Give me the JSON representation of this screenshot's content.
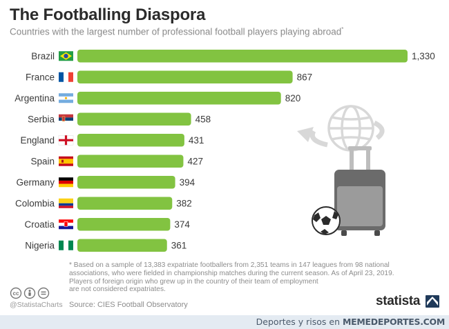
{
  "title": "The Footballing Diaspora",
  "subtitle": "Countries with the largest number of professional football players playing abroad",
  "subtitle_mark": "*",
  "chart_data": {
    "type": "bar",
    "orientation": "horizontal",
    "title": "The Footballing Diaspora",
    "categories": [
      "Brazil",
      "France",
      "Argentina",
      "Serbia",
      "England",
      "Spain",
      "Germany",
      "Colombia",
      "Croatia",
      "Nigeria"
    ],
    "values": [
      1330,
      867,
      820,
      458,
      431,
      427,
      394,
      382,
      374,
      361
    ],
    "value_labels": [
      "1,330",
      "867",
      "820",
      "458",
      "431",
      "427",
      "394",
      "382",
      "374",
      "361"
    ],
    "xlabel": "",
    "ylabel": "",
    "xlim": [
      0,
      1330
    ],
    "grid": false,
    "bar_color": "#82c341"
  },
  "flags": [
    "brazil-flag",
    "france-flag",
    "argentina-flag",
    "serbia-flag",
    "england-flag",
    "spain-flag",
    "germany-flag",
    "colombia-flag",
    "croatia-flag",
    "nigeria-flag"
  ],
  "footnote": {
    "lines": [
      "* Based on a sample of 13,383 expatriate footballers from 2,351 teams in 147 leagues from 98 national",
      "associations, who were fielded in championship matches during the current season. As of April 23, 2019.",
      "Players of foreign origin who grew up in the country of their team of employment",
      "are not considered expatriates."
    ]
  },
  "source": "Source: CIES Football Observatory",
  "handle": "@StatistaCharts",
  "brand": "statista",
  "watermark": {
    "prefix": "Deportes y risos en",
    "brand": "MEMEDEPORTES.COM"
  },
  "colors": {
    "bar": "#82c341",
    "title": "#2b2b2b",
    "subtitle": "#8a8a8a",
    "illustration": "#d9d9d9"
  }
}
